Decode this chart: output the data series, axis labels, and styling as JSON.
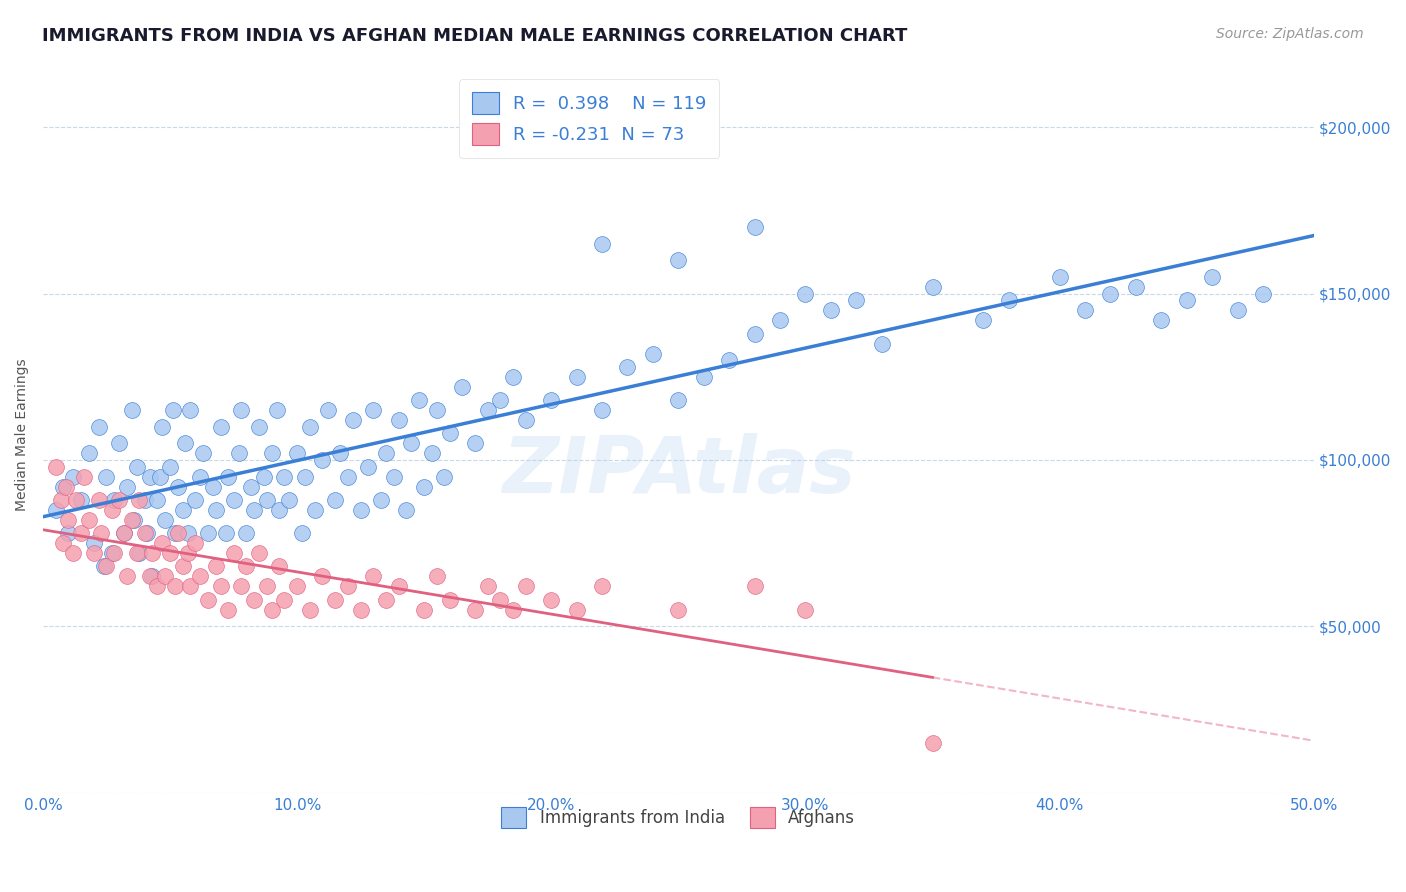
{
  "title": "IMMIGRANTS FROM INDIA VS AFGHAN MEDIAN MALE EARNINGS CORRELATION CHART",
  "source": "Source: ZipAtlas.com",
  "ylabel": "Median Male Earnings",
  "yticks": [
    0,
    50000,
    100000,
    150000,
    200000
  ],
  "ytick_labels": [
    "",
    "$50,000",
    "$100,000",
    "$150,000",
    "$200,000"
  ],
  "xlim": [
    0.0,
    0.5
  ],
  "ylim": [
    0,
    215000
  ],
  "india_R": 0.398,
  "india_N": 119,
  "afghan_R": -0.231,
  "afghan_N": 73,
  "india_color": "#a8c8f0",
  "india_line_color": "#3a7fd5",
  "afghan_color": "#f5a0b0",
  "afghan_line_color": "#e06080",
  "background_color": "#ffffff",
  "grid_color": "#c8d8e8",
  "title_color": "#1a1a2e",
  "tick_color": "#3a7fd5",
  "watermark": "ZIPAtlas",
  "india_scatter_x": [
    0.005,
    0.008,
    0.01,
    0.012,
    0.015,
    0.018,
    0.02,
    0.022,
    0.024,
    0.025,
    0.027,
    0.028,
    0.03,
    0.032,
    0.033,
    0.035,
    0.036,
    0.037,
    0.038,
    0.04,
    0.041,
    0.042,
    0.043,
    0.045,
    0.046,
    0.047,
    0.048,
    0.05,
    0.051,
    0.052,
    0.053,
    0.055,
    0.056,
    0.057,
    0.058,
    0.06,
    0.062,
    0.063,
    0.065,
    0.067,
    0.068,
    0.07,
    0.072,
    0.073,
    0.075,
    0.077,
    0.078,
    0.08,
    0.082,
    0.083,
    0.085,
    0.087,
    0.088,
    0.09,
    0.092,
    0.093,
    0.095,
    0.097,
    0.1,
    0.102,
    0.103,
    0.105,
    0.107,
    0.11,
    0.112,
    0.115,
    0.117,
    0.12,
    0.122,
    0.125,
    0.128,
    0.13,
    0.133,
    0.135,
    0.138,
    0.14,
    0.143,
    0.145,
    0.148,
    0.15,
    0.153,
    0.155,
    0.158,
    0.16,
    0.165,
    0.17,
    0.175,
    0.18,
    0.185,
    0.19,
    0.2,
    0.21,
    0.22,
    0.23,
    0.24,
    0.25,
    0.26,
    0.27,
    0.28,
    0.29,
    0.3,
    0.31,
    0.32,
    0.33,
    0.35,
    0.37,
    0.38,
    0.4,
    0.41,
    0.42,
    0.43,
    0.44,
    0.45,
    0.46,
    0.47,
    0.48,
    0.22,
    0.25,
    0.28
  ],
  "india_scatter_y": [
    85000,
    92000,
    78000,
    95000,
    88000,
    102000,
    75000,
    110000,
    68000,
    95000,
    72000,
    88000,
    105000,
    78000,
    92000,
    115000,
    82000,
    98000,
    72000,
    88000,
    78000,
    95000,
    65000,
    88000,
    95000,
    110000,
    82000,
    98000,
    115000,
    78000,
    92000,
    85000,
    105000,
    78000,
    115000,
    88000,
    95000,
    102000,
    78000,
    92000,
    85000,
    110000,
    78000,
    95000,
    88000,
    102000,
    115000,
    78000,
    92000,
    85000,
    110000,
    95000,
    88000,
    102000,
    115000,
    85000,
    95000,
    88000,
    102000,
    78000,
    95000,
    110000,
    85000,
    100000,
    115000,
    88000,
    102000,
    95000,
    112000,
    85000,
    98000,
    115000,
    88000,
    102000,
    95000,
    112000,
    85000,
    105000,
    118000,
    92000,
    102000,
    115000,
    95000,
    108000,
    122000,
    105000,
    115000,
    118000,
    125000,
    112000,
    118000,
    125000,
    115000,
    128000,
    132000,
    118000,
    125000,
    130000,
    138000,
    142000,
    150000,
    145000,
    148000,
    135000,
    152000,
    142000,
    148000,
    155000,
    145000,
    150000,
    152000,
    142000,
    148000,
    155000,
    145000,
    150000,
    165000,
    160000,
    170000
  ],
  "afghan_scatter_x": [
    0.005,
    0.007,
    0.008,
    0.009,
    0.01,
    0.012,
    0.013,
    0.015,
    0.016,
    0.018,
    0.02,
    0.022,
    0.023,
    0.025,
    0.027,
    0.028,
    0.03,
    0.032,
    0.033,
    0.035,
    0.037,
    0.038,
    0.04,
    0.042,
    0.043,
    0.045,
    0.047,
    0.048,
    0.05,
    0.052,
    0.053,
    0.055,
    0.057,
    0.058,
    0.06,
    0.062,
    0.065,
    0.068,
    0.07,
    0.073,
    0.075,
    0.078,
    0.08,
    0.083,
    0.085,
    0.088,
    0.09,
    0.093,
    0.095,
    0.1,
    0.105,
    0.11,
    0.115,
    0.12,
    0.125,
    0.13,
    0.135,
    0.14,
    0.15,
    0.155,
    0.16,
    0.17,
    0.175,
    0.18,
    0.185,
    0.19,
    0.2,
    0.21,
    0.22,
    0.25,
    0.28,
    0.3,
    0.35
  ],
  "afghan_scatter_y": [
    98000,
    88000,
    75000,
    92000,
    82000,
    72000,
    88000,
    78000,
    95000,
    82000,
    72000,
    88000,
    78000,
    68000,
    85000,
    72000,
    88000,
    78000,
    65000,
    82000,
    72000,
    88000,
    78000,
    65000,
    72000,
    62000,
    75000,
    65000,
    72000,
    62000,
    78000,
    68000,
    72000,
    62000,
    75000,
    65000,
    58000,
    68000,
    62000,
    55000,
    72000,
    62000,
    68000,
    58000,
    72000,
    62000,
    55000,
    68000,
    58000,
    62000,
    55000,
    65000,
    58000,
    62000,
    55000,
    65000,
    58000,
    62000,
    55000,
    65000,
    58000,
    55000,
    62000,
    58000,
    55000,
    62000,
    58000,
    55000,
    62000,
    55000,
    62000,
    55000,
    15000
  ]
}
